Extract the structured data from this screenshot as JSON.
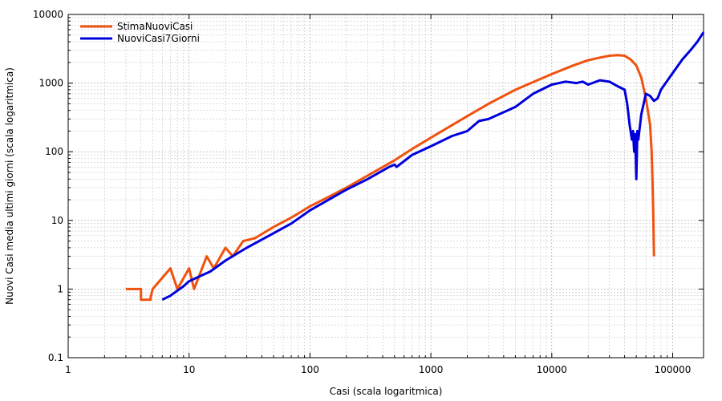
{
  "chart_data": {
    "type": "line",
    "xlabel": "Casi (scala logaritmica)",
    "ylabel": "Nuovi Casi media ultimi giorni (scala logaritmica)",
    "xscale": "log",
    "yscale": "log",
    "xlim": [
      1,
      180000
    ],
    "ylim": [
      0.1,
      10000
    ],
    "grid": true,
    "legend_position": "top-left",
    "x_ticks": [
      {
        "value": 1,
        "label": "1"
      },
      {
        "value": 10,
        "label": "10"
      },
      {
        "value": 100,
        "label": "100"
      },
      {
        "value": 1000,
        "label": "1000"
      },
      {
        "value": 10000,
        "label": "10000"
      },
      {
        "value": 100000,
        "label": "100000"
      }
    ],
    "y_ticks": [
      {
        "value": 0.1,
        "label": "0.1"
      },
      {
        "value": 1,
        "label": "1"
      },
      {
        "value": 10,
        "label": "10"
      },
      {
        "value": 100,
        "label": "100"
      },
      {
        "value": 1000,
        "label": "1000"
      },
      {
        "value": 10000,
        "label": "10000"
      }
    ],
    "series": [
      {
        "name": "StimaNuoviCasi",
        "color": "#f0520f",
        "x": [
          3,
          4,
          4,
          4.8,
          4.8,
          5,
          7,
          8,
          10,
          11,
          14,
          16,
          20,
          23,
          28,
          35,
          50,
          70,
          100,
          150,
          200,
          300,
          500,
          700,
          1000,
          2000,
          3000,
          5000,
          10000,
          15000,
          20000,
          25000,
          30000,
          35000,
          40000,
          45000,
          50000,
          55000,
          60000,
          65000,
          67000,
          68000,
          69000,
          70000,
          70000
        ],
        "y": [
          1,
          1,
          0.7,
          0.7,
          0.75,
          1,
          2,
          1,
          2,
          1,
          3,
          2,
          4,
          3,
          5,
          5.5,
          8,
          11,
          16,
          23,
          30,
          45,
          75,
          110,
          160,
          330,
          500,
          800,
          1350,
          1800,
          2150,
          2350,
          2500,
          2550,
          2500,
          2200,
          1800,
          1200,
          600,
          250,
          100,
          40,
          15,
          3,
          3
        ]
      },
      {
        "name": "NuoviCasi7Giorni",
        "color": "#0000dc",
        "x": [
          6,
          7,
          9,
          10,
          15,
          20,
          30,
          50,
          70,
          100,
          150,
          200,
          300,
          450,
          500,
          520,
          700,
          1000,
          1500,
          2000,
          2500,
          3000,
          5000,
          7000,
          10000,
          13000,
          16000,
          18000,
          20000,
          25000,
          30000,
          35000,
          40000,
          42000,
          44000,
          46000,
          47000,
          48000,
          49000,
          50000,
          51000,
          52000,
          55000,
          60000,
          65000,
          70000,
          75000,
          80000,
          100000,
          120000,
          140000,
          160000,
          180000
        ],
        "y": [
          0.7,
          0.8,
          1.1,
          1.3,
          1.8,
          2.6,
          4,
          6.5,
          9,
          14,
          21,
          28,
          40,
          60,
          65,
          60,
          90,
          120,
          170,
          200,
          280,
          300,
          450,
          700,
          950,
          1050,
          1000,
          1050,
          950,
          1100,
          1050,
          900,
          800,
          500,
          250,
          150,
          200,
          100,
          180,
          40,
          200,
          150,
          350,
          700,
          650,
          550,
          600,
          800,
          1400,
          2200,
          3000,
          4000,
          5500
        ]
      }
    ]
  }
}
